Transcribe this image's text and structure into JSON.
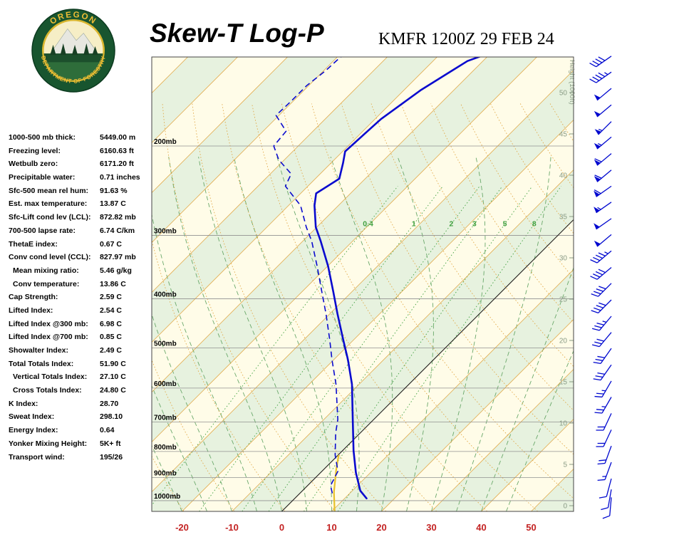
{
  "header": {
    "title": "Skew-T Log-P",
    "station": "KMFR 1200Z 29 FEB 24",
    "logo_top": "OREGON",
    "logo_bottom": "DEPARTMENT OF FORESTRY"
  },
  "stats": [
    {
      "label": "1000-500 mb thick:",
      "value": "5449.00 m",
      "indent": false
    },
    {
      "label": "Freezing level:",
      "value": "6160.63 ft",
      "indent": false
    },
    {
      "label": "Wetbulb zero:",
      "value": "6171.20 ft",
      "indent": false
    },
    {
      "label": "Precipitable water:",
      "value": "0.71 inches",
      "indent": false
    },
    {
      "label": "Sfc-500 mean rel hum:",
      "value": "91.63 %",
      "indent": false
    },
    {
      "label": "Est. max temperature:",
      "value": "13.87 C",
      "indent": false
    },
    {
      "label": "Sfc-Lift cond lev (LCL):",
      "value": "872.82 mb",
      "indent": false
    },
    {
      "label": "700-500 lapse rate:",
      "value": "6.74 C/km",
      "indent": false
    },
    {
      "label": "ThetaE index:",
      "value": "0.67 C",
      "indent": false
    },
    {
      "label": "Conv cond level (CCL):",
      "value": "827.97 mb",
      "indent": false
    },
    {
      "label": "Mean mixing ratio:",
      "value": "5.46 g/kg",
      "indent": true
    },
    {
      "label": "Conv temperature:",
      "value": "13.86 C",
      "indent": true
    },
    {
      "label": "Cap Strength:",
      "value": "2.59 C",
      "indent": false
    },
    {
      "label": "Lifted Index:",
      "value": "2.54 C",
      "indent": false
    },
    {
      "label": "Lifted Index @300 mb:",
      "value": "6.98 C",
      "indent": false
    },
    {
      "label": "Lifted Index @700 mb:",
      "value": "0.85 C",
      "indent": false
    },
    {
      "label": "Showalter Index:",
      "value": "2.49 C",
      "indent": false
    },
    {
      "label": "Total Totals Index:",
      "value": "51.90 C",
      "indent": false
    },
    {
      "label": "Vertical Totals Index:",
      "value": "27.10 C",
      "indent": true
    },
    {
      "label": "Cross Totals Index:",
      "value": "24.80 C",
      "indent": true
    },
    {
      "label": "K Index:",
      "value": "28.70",
      "indent": false
    },
    {
      "label": "Sweat Index:",
      "value": "298.10",
      "indent": false
    },
    {
      "label": "Energy Index:",
      "value": "0.64",
      "indent": false
    },
    {
      "label": "Yonker Mixing Height:",
      "value": "5K+ ft",
      "indent": false
    },
    {
      "label": "Transport wind:",
      "value": "195/26",
      "indent": false
    }
  ],
  "chart_data": {
    "type": "line",
    "chart_kind": "skew-t-log-p",
    "title": "Skew-T Log-P",
    "station_label": "KMFR 1200Z 29 FEB 24",
    "x_axis_label_values": [
      -20,
      -10,
      0,
      10,
      20,
      30,
      40,
      50
    ],
    "pressure_levels": [
      200,
      300,
      400,
      500,
      600,
      700,
      800,
      900,
      1000
    ],
    "pressure_unit": "mb",
    "pressure_range": [
      1050,
      133
    ],
    "height_axis_label": "Height (1000ft)",
    "height_ticks": [
      0,
      5,
      10,
      15,
      20,
      25,
      30,
      35,
      40,
      45,
      50
    ],
    "mixing_ratio_lines": [
      0.4,
      1,
      2,
      3,
      5,
      8
    ],
    "temperature_profile": [
      [
        990,
        14.4
      ],
      [
        956,
        11.6
      ],
      [
        881,
        7.1
      ],
      [
        797,
        2.2
      ],
      [
        692,
        -4.2
      ],
      [
        590,
        -11.4
      ],
      [
        527,
        -17.2
      ],
      [
        482,
        -22.1
      ],
      [
        428,
        -28.5
      ],
      [
        387,
        -33.8
      ],
      [
        345,
        -39.9
      ],
      [
        308,
        -46.4
      ],
      [
        289,
        -50.2
      ],
      [
        262,
        -54.8
      ],
      [
        248,
        -56.9
      ],
      [
        232,
        -55.2
      ],
      [
        216,
        -57.6
      ],
      [
        205,
        -59.5
      ],
      [
        177,
        -58.8
      ],
      [
        155,
        -56.6
      ],
      [
        136,
        -53.1
      ],
      [
        129,
        -49.0
      ]
    ],
    "dewpoint_profile": [
      [
        967,
        6.5
      ],
      [
        934,
        4.6
      ],
      [
        875,
        3.2
      ],
      [
        813,
        -0.6
      ],
      [
        736,
        -4.9
      ],
      [
        692,
        -7.2
      ],
      [
        590,
        -14.6
      ],
      [
        527,
        -20.4
      ],
      [
        482,
        -24.8
      ],
      [
        428,
        -30.8
      ],
      [
        387,
        -36.1
      ],
      [
        345,
        -42.1
      ],
      [
        308,
        -48.2
      ],
      [
        289,
        -52.1
      ],
      [
        262,
        -57.6
      ],
      [
        240,
        -64.5
      ],
      [
        227,
        -65.8
      ],
      [
        213,
        -71.1
      ],
      [
        200,
        -74.9
      ],
      [
        187,
        -75.4
      ],
      [
        174,
        -80.6
      ],
      [
        163,
        -80.4
      ],
      [
        152,
        -80.4
      ],
      [
        142,
        -79.6
      ],
      [
        135,
        -79.4
      ],
      [
        130,
        -78.9
      ]
    ],
    "parcel_trace": [
      [
        1050,
        10.6
      ],
      [
        962,
        6.6
      ],
      [
        870,
        2.6
      ],
      [
        813,
        0.1
      ]
    ],
    "winds": [
      [
        985,
        185,
        8
      ],
      [
        950,
        190,
        10
      ],
      [
        905,
        195,
        12
      ],
      [
        840,
        200,
        15
      ],
      [
        780,
        200,
        18
      ],
      [
        725,
        205,
        20
      ],
      [
        673,
        205,
        22
      ],
      [
        625,
        210,
        25
      ],
      [
        581,
        210,
        25
      ],
      [
        540,
        215,
        28
      ],
      [
        501,
        215,
        30
      ],
      [
        466,
        220,
        32
      ],
      [
        433,
        220,
        35
      ],
      [
        402,
        225,
        38
      ],
      [
        373,
        225,
        40
      ],
      [
        347,
        230,
        42
      ],
      [
        322,
        230,
        45
      ],
      [
        299,
        230,
        48
      ],
      [
        278,
        235,
        50
      ],
      [
        258,
        235,
        55
      ],
      [
        240,
        235,
        58
      ],
      [
        223,
        230,
        60
      ],
      [
        207,
        230,
        60
      ],
      [
        192,
        230,
        55
      ],
      [
        179,
        225,
        55
      ],
      [
        166,
        230,
        50
      ],
      [
        154,
        230,
        48
      ],
      [
        143,
        235,
        45
      ],
      [
        133,
        235,
        42
      ]
    ],
    "colors": {
      "plot_bg": "#fffce8",
      "band": "#e7f2df",
      "isotherm": "#e0a23c",
      "dry_adiabat": "#e0a23c",
      "moist_adiabat": "#6aa86a",
      "mixing_ratio": "#3fa03f",
      "pressure_line": "#919191",
      "zero_isotherm": "#222222",
      "sounding": "#0a0ace",
      "parcel": "#e7c12a",
      "x_labels": "#c32222",
      "height_labels": "#8a9c86",
      "wind_barb": "#0008cf",
      "border": "#444444"
    }
  }
}
